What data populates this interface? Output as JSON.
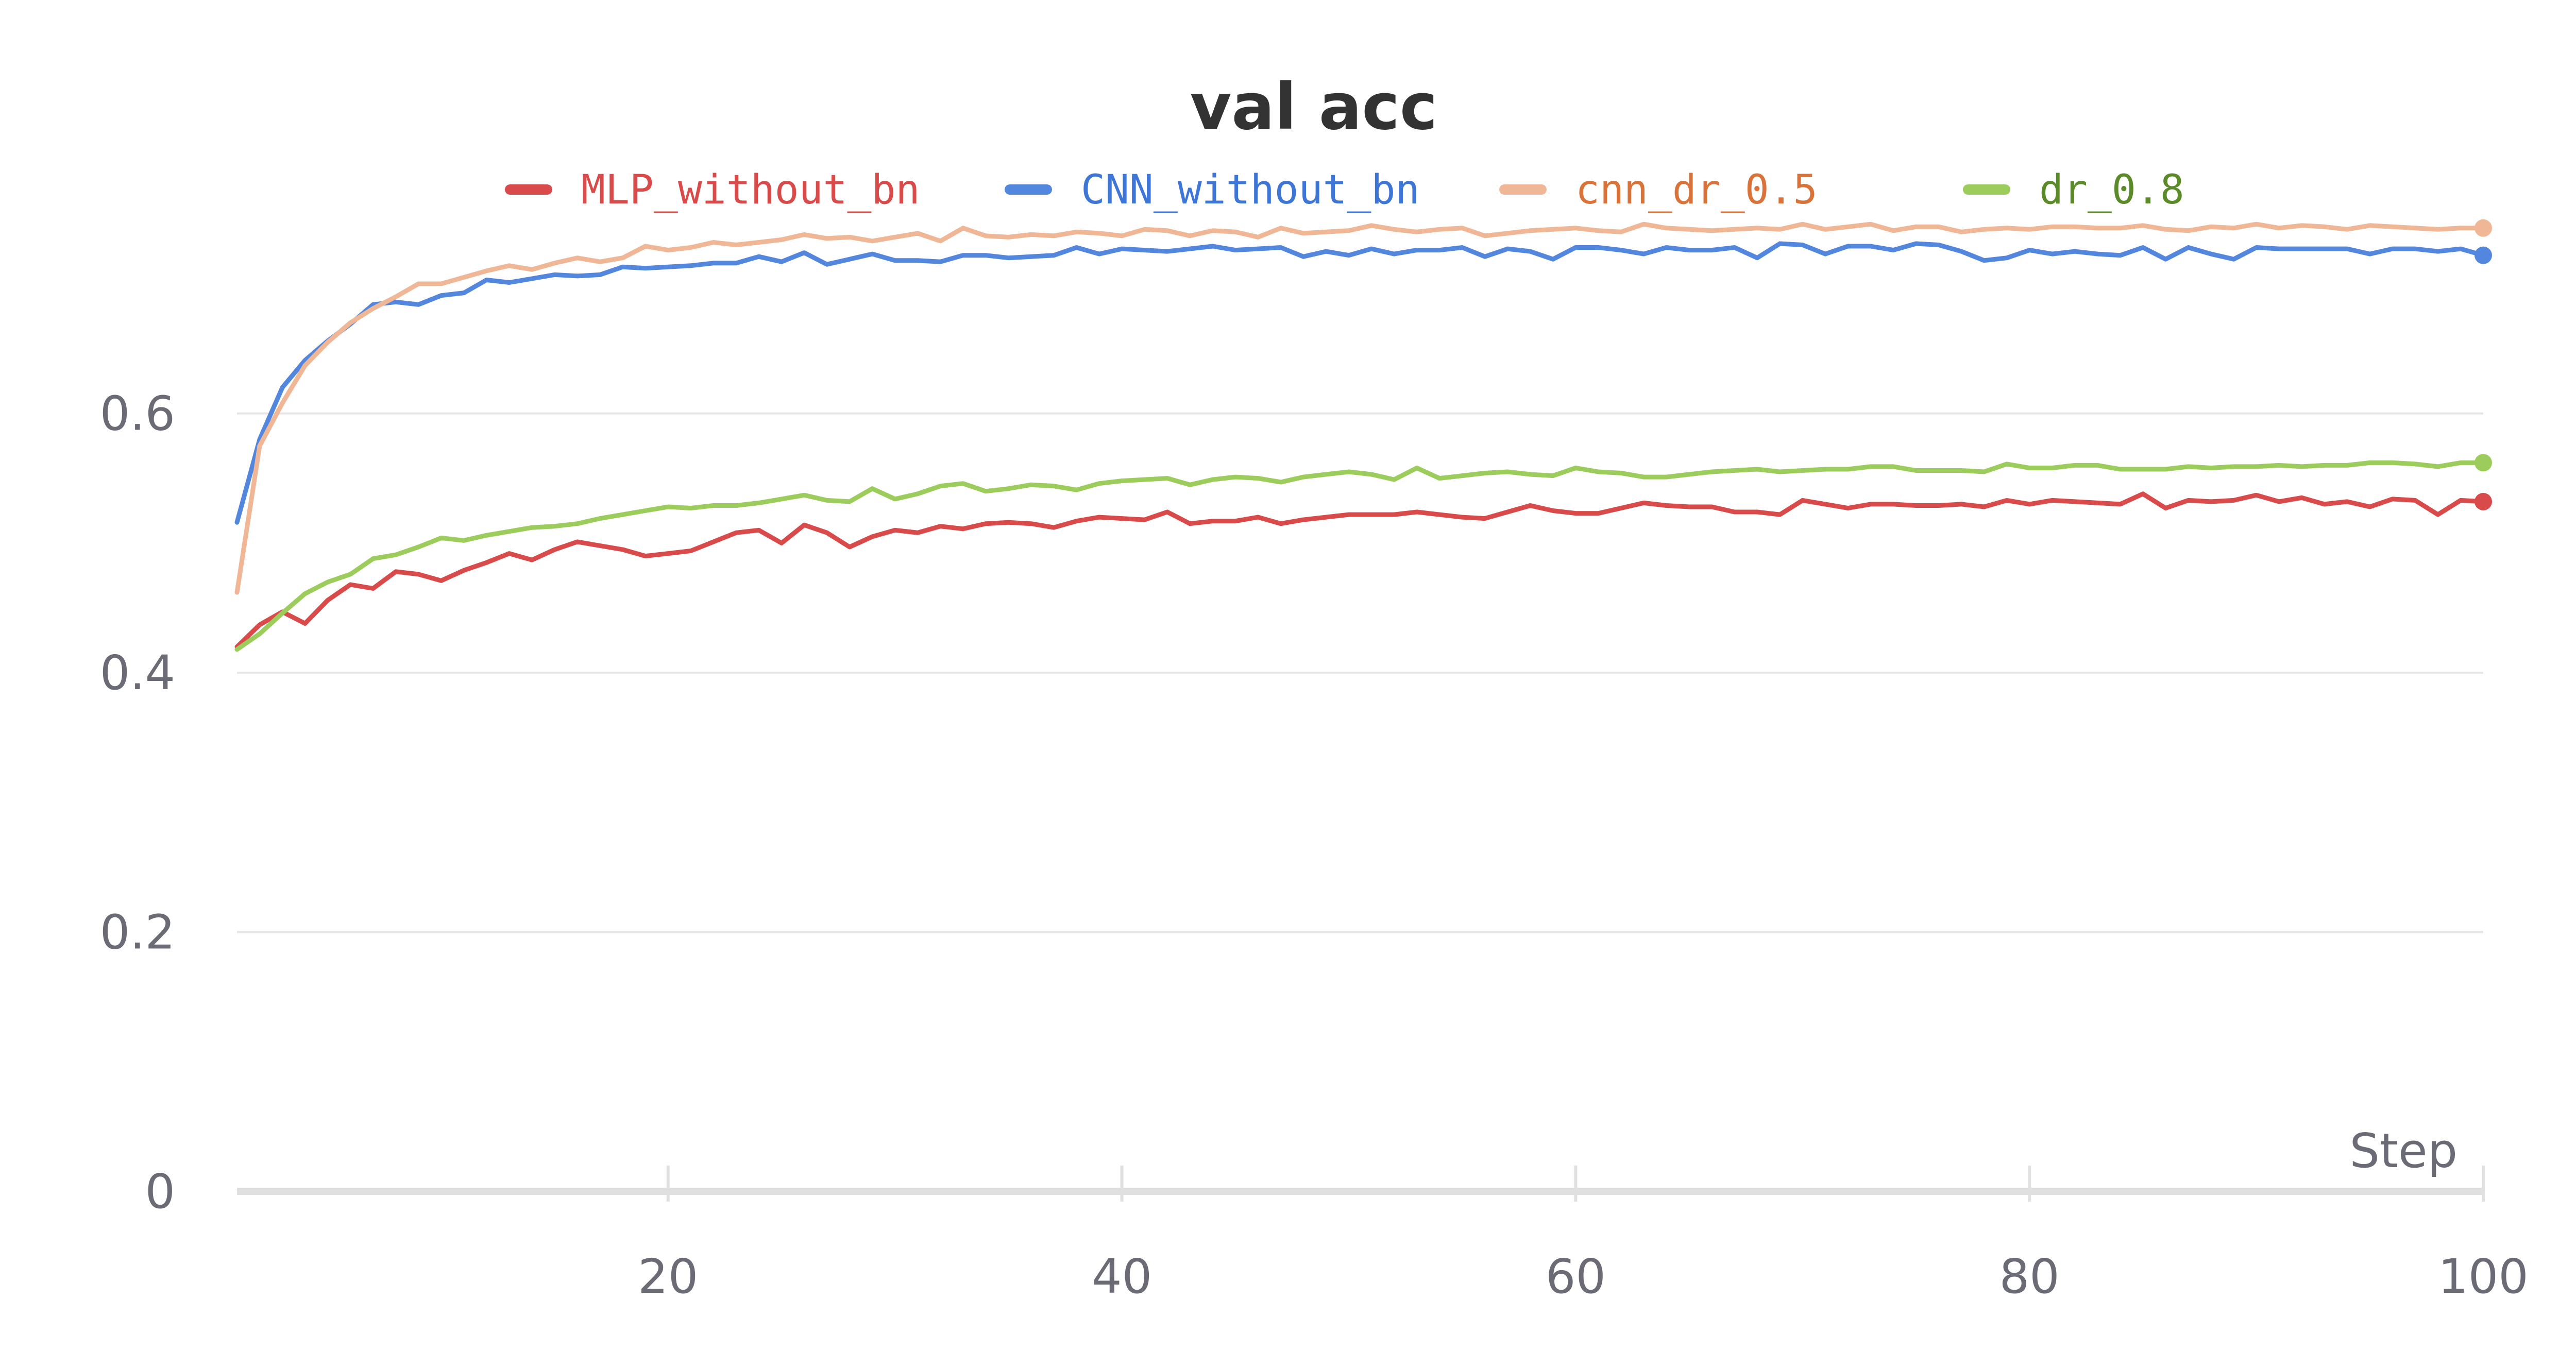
{
  "chart_data": {
    "type": "line",
    "title": "val acc",
    "xlabel": "Step",
    "ylabel": "",
    "xlim": [
      1,
      100
    ],
    "ylim": [
      0,
      0.76
    ],
    "x_ticks": [
      "20",
      "40",
      "60",
      "80",
      "100"
    ],
    "y_ticks": [
      "0",
      "0.2",
      "0.4",
      "0.6"
    ],
    "y_tick_values": [
      0,
      0.2,
      0.4,
      0.6
    ],
    "x_tick_values": [
      20,
      40,
      60,
      80,
      100
    ],
    "grid": true,
    "legend_position": "top",
    "x": [
      1,
      2,
      3,
      4,
      5,
      6,
      7,
      8,
      9,
      10,
      11,
      12,
      13,
      14,
      15,
      16,
      17,
      18,
      19,
      20,
      21,
      22,
      23,
      24,
      25,
      26,
      27,
      28,
      29,
      30,
      31,
      32,
      33,
      34,
      35,
      36,
      37,
      38,
      39,
      40,
      41,
      42,
      43,
      44,
      45,
      46,
      47,
      48,
      49,
      50,
      51,
      52,
      53,
      54,
      55,
      56,
      57,
      58,
      59,
      60,
      61,
      62,
      63,
      64,
      65,
      66,
      67,
      68,
      69,
      70,
      71,
      72,
      73,
      74,
      75,
      76,
      77,
      78,
      79,
      80,
      81,
      82,
      83,
      84,
      85,
      86,
      87,
      88,
      89,
      90,
      91,
      92,
      93,
      94,
      95,
      96,
      97,
      98,
      99,
      100
    ],
    "series": [
      {
        "name": "MLP_without_bn",
        "color": "#d94a4a",
        "legend_text_color": "#d94a4a",
        "values": [
          0.42,
          0.437,
          0.447,
          0.438,
          0.456,
          0.468,
          0.465,
          0.478,
          0.476,
          0.471,
          0.479,
          0.485,
          0.492,
          0.487,
          0.495,
          0.501,
          0.498,
          0.495,
          0.49,
          0.492,
          0.494,
          0.501,
          0.508,
          0.51,
          0.5,
          0.514,
          0.508,
          0.497,
          0.505,
          0.51,
          0.508,
          0.513,
          0.511,
          0.515,
          0.516,
          0.515,
          0.512,
          0.517,
          0.52,
          0.519,
          0.518,
          0.524,
          0.515,
          0.517,
          0.517,
          0.52,
          0.515,
          0.518,
          0.52,
          0.522,
          0.522,
          0.522,
          0.524,
          0.522,
          0.52,
          0.519,
          0.524,
          0.529,
          0.525,
          0.523,
          0.523,
          0.527,
          0.531,
          0.529,
          0.528,
          0.528,
          0.524,
          0.524,
          0.522,
          0.533,
          0.53,
          0.527,
          0.53,
          0.53,
          0.529,
          0.529,
          0.53,
          0.528,
          0.533,
          0.53,
          0.533,
          0.532,
          0.531,
          0.53,
          0.538,
          0.527,
          0.533,
          0.532,
          0.533,
          0.537,
          0.532,
          0.535,
          0.53,
          0.532,
          0.528,
          0.534,
          0.533,
          0.522,
          0.533,
          0.532
        ]
      },
      {
        "name": "CNN_without_bn",
        "color": "#5387dd",
        "legend_text_color": "#3d76d6",
        "values": [
          0.516,
          0.58,
          0.62,
          0.641,
          0.656,
          0.669,
          0.684,
          0.686,
          0.684,
          0.691,
          0.693,
          0.703,
          0.701,
          0.704,
          0.707,
          0.706,
          0.707,
          0.713,
          0.712,
          0.713,
          0.714,
          0.716,
          0.716,
          0.721,
          0.717,
          0.724,
          0.715,
          0.719,
          0.723,
          0.718,
          0.718,
          0.717,
          0.722,
          0.722,
          0.72,
          0.721,
          0.722,
          0.728,
          0.723,
          0.727,
          0.726,
          0.725,
          0.727,
          0.729,
          0.726,
          0.727,
          0.728,
          0.721,
          0.725,
          0.722,
          0.727,
          0.723,
          0.726,
          0.726,
          0.728,
          0.721,
          0.727,
          0.725,
          0.719,
          0.728,
          0.728,
          0.726,
          0.723,
          0.728,
          0.726,
          0.726,
          0.728,
          0.72,
          0.731,
          0.73,
          0.723,
          0.729,
          0.729,
          0.726,
          0.731,
          0.73,
          0.725,
          0.718,
          0.72,
          0.726,
          0.723,
          0.725,
          0.723,
          0.722,
          0.728,
          0.719,
          0.728,
          0.723,
          0.719,
          0.728,
          0.727,
          0.727,
          0.727,
          0.727,
          0.723,
          0.727,
          0.727,
          0.725,
          0.727,
          0.722
        ]
      },
      {
        "name": "cnn_dr_0.5",
        "color": "#efb796",
        "legend_text_color": "#d9733a",
        "values": [
          0.462,
          0.575,
          0.608,
          0.637,
          0.655,
          0.67,
          0.681,
          0.69,
          0.7,
          0.7,
          0.705,
          0.71,
          0.714,
          0.711,
          0.716,
          0.72,
          0.717,
          0.72,
          0.729,
          0.726,
          0.728,
          0.732,
          0.73,
          0.732,
          0.734,
          0.738,
          0.735,
          0.736,
          0.733,
          0.736,
          0.739,
          0.733,
          0.743,
          0.737,
          0.736,
          0.738,
          0.737,
          0.74,
          0.739,
          0.737,
          0.742,
          0.741,
          0.737,
          0.741,
          0.74,
          0.736,
          0.743,
          0.739,
          0.74,
          0.741,
          0.745,
          0.742,
          0.74,
          0.742,
          0.743,
          0.737,
          0.739,
          0.741,
          0.742,
          0.743,
          0.741,
          0.74,
          0.746,
          0.743,
          0.742,
          0.741,
          0.742,
          0.743,
          0.742,
          0.746,
          0.742,
          0.744,
          0.746,
          0.741,
          0.744,
          0.744,
          0.74,
          0.742,
          0.743,
          0.742,
          0.744,
          0.744,
          0.743,
          0.743,
          0.745,
          0.742,
          0.741,
          0.744,
          0.743,
          0.746,
          0.743,
          0.745,
          0.744,
          0.742,
          0.745,
          0.744,
          0.743,
          0.742,
          0.743,
          0.743
        ]
      },
      {
        "name": "dr_0.8",
        "color": "#9ccc5c",
        "legend_text_color": "#5b8a28",
        "values": [
          0.418,
          0.43,
          0.446,
          0.461,
          0.47,
          0.476,
          0.488,
          0.491,
          0.497,
          0.504,
          0.502,
          0.506,
          0.509,
          0.512,
          0.513,
          0.515,
          0.519,
          0.522,
          0.525,
          0.528,
          0.527,
          0.529,
          0.529,
          0.531,
          0.534,
          0.537,
          0.533,
          0.532,
          0.542,
          0.534,
          0.538,
          0.544,
          0.546,
          0.54,
          0.542,
          0.545,
          0.544,
          0.541,
          0.546,
          0.548,
          0.549,
          0.55,
          0.545,
          0.549,
          0.551,
          0.55,
          0.547,
          0.551,
          0.553,
          0.555,
          0.553,
          0.549,
          0.558,
          0.55,
          0.552,
          0.554,
          0.555,
          0.553,
          0.552,
          0.558,
          0.555,
          0.554,
          0.551,
          0.551,
          0.553,
          0.555,
          0.556,
          0.557,
          0.555,
          0.556,
          0.557,
          0.557,
          0.559,
          0.559,
          0.556,
          0.556,
          0.556,
          0.555,
          0.561,
          0.558,
          0.558,
          0.56,
          0.56,
          0.557,
          0.557,
          0.557,
          0.559,
          0.558,
          0.559,
          0.559,
          0.56,
          0.559,
          0.56,
          0.56,
          0.562,
          0.562,
          0.561,
          0.559,
          0.562,
          0.562
        ]
      }
    ]
  }
}
